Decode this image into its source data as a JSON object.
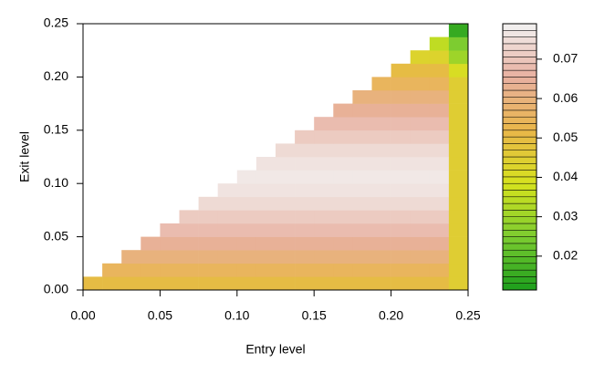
{
  "chart_data": {
    "type": "heatmap",
    "xlabel": "Entry level",
    "ylabel": "Exit level",
    "x_bins": [
      0,
      0.0125,
      0.025,
      0.0375,
      0.05,
      0.0625,
      0.075,
      0.0875,
      0.1,
      0.1125,
      0.125,
      0.1375,
      0.15,
      0.1625,
      0.175,
      0.1875,
      0.2,
      0.2125,
      0.225,
      0.2375,
      0.25
    ],
    "y_bins": [
      0,
      0.0125,
      0.025,
      0.0375,
      0.05,
      0.0625,
      0.075,
      0.0875,
      0.1,
      0.1125,
      0.125,
      0.1375,
      0.15,
      0.1625,
      0.175,
      0.1875,
      0.2,
      0.2125,
      0.225,
      0.2375,
      0.25
    ],
    "z": [
      [
        0.05,
        0.05,
        0.05,
        0.05,
        0.05,
        0.05,
        0.05,
        0.05,
        0.05,
        0.05,
        0.05,
        0.05,
        0.05,
        0.05,
        0.05,
        0.05,
        0.05,
        0.05,
        0.05,
        0.045
      ],
      [
        null,
        0.055,
        0.055,
        0.055,
        0.055,
        0.055,
        0.055,
        0.055,
        0.055,
        0.055,
        0.055,
        0.055,
        0.055,
        0.055,
        0.055,
        0.055,
        0.055,
        0.055,
        0.055,
        0.045
      ],
      [
        null,
        null,
        0.06,
        0.06,
        0.06,
        0.06,
        0.06,
        0.06,
        0.06,
        0.06,
        0.06,
        0.06,
        0.06,
        0.06,
        0.06,
        0.06,
        0.06,
        0.06,
        0.06,
        0.045
      ],
      [
        null,
        null,
        null,
        0.064,
        0.064,
        0.064,
        0.064,
        0.064,
        0.064,
        0.064,
        0.064,
        0.064,
        0.064,
        0.064,
        0.064,
        0.064,
        0.064,
        0.064,
        0.064,
        0.045
      ],
      [
        null,
        null,
        null,
        null,
        0.068,
        0.068,
        0.068,
        0.068,
        0.068,
        0.068,
        0.068,
        0.068,
        0.068,
        0.068,
        0.068,
        0.068,
        0.068,
        0.068,
        0.068,
        0.045
      ],
      [
        null,
        null,
        null,
        null,
        null,
        0.071,
        0.071,
        0.071,
        0.071,
        0.071,
        0.071,
        0.071,
        0.071,
        0.071,
        0.071,
        0.071,
        0.071,
        0.071,
        0.071,
        0.045
      ],
      [
        null,
        null,
        null,
        null,
        null,
        null,
        0.074,
        0.074,
        0.074,
        0.074,
        0.074,
        0.074,
        0.074,
        0.074,
        0.074,
        0.074,
        0.074,
        0.074,
        0.074,
        0.045
      ],
      [
        null,
        null,
        null,
        null,
        null,
        null,
        null,
        0.076,
        0.076,
        0.076,
        0.076,
        0.076,
        0.076,
        0.076,
        0.076,
        0.076,
        0.076,
        0.076,
        0.076,
        0.045
      ],
      [
        null,
        null,
        null,
        null,
        null,
        null,
        null,
        null,
        0.077,
        0.077,
        0.077,
        0.077,
        0.077,
        0.077,
        0.077,
        0.077,
        0.077,
        0.077,
        0.077,
        0.045
      ],
      [
        null,
        null,
        null,
        null,
        null,
        null,
        null,
        null,
        null,
        0.076,
        0.076,
        0.076,
        0.076,
        0.076,
        0.076,
        0.076,
        0.076,
        0.076,
        0.076,
        0.045
      ],
      [
        null,
        null,
        null,
        null,
        null,
        null,
        null,
        null,
        null,
        null,
        0.074,
        0.074,
        0.074,
        0.074,
        0.074,
        0.074,
        0.074,
        0.074,
        0.074,
        0.045
      ],
      [
        null,
        null,
        null,
        null,
        null,
        null,
        null,
        null,
        null,
        null,
        null,
        0.071,
        0.071,
        0.071,
        0.071,
        0.071,
        0.071,
        0.071,
        0.071,
        0.045
      ],
      [
        null,
        null,
        null,
        null,
        null,
        null,
        null,
        null,
        null,
        null,
        null,
        null,
        0.068,
        0.068,
        0.068,
        0.068,
        0.068,
        0.068,
        0.068,
        0.045
      ],
      [
        null,
        null,
        null,
        null,
        null,
        null,
        null,
        null,
        null,
        null,
        null,
        null,
        null,
        0.064,
        0.064,
        0.064,
        0.064,
        0.064,
        0.064,
        0.045
      ],
      [
        null,
        null,
        null,
        null,
        null,
        null,
        null,
        null,
        null,
        null,
        null,
        null,
        null,
        null,
        0.06,
        0.06,
        0.06,
        0.06,
        0.06,
        0.045
      ],
      [
        null,
        null,
        null,
        null,
        null,
        null,
        null,
        null,
        null,
        null,
        null,
        null,
        null,
        null,
        null,
        0.055,
        0.055,
        0.055,
        0.055,
        0.045
      ],
      [
        null,
        null,
        null,
        null,
        null,
        null,
        null,
        null,
        null,
        null,
        null,
        null,
        null,
        null,
        null,
        null,
        0.05,
        0.05,
        0.05,
        0.04
      ],
      [
        null,
        null,
        null,
        null,
        null,
        null,
        null,
        null,
        null,
        null,
        null,
        null,
        null,
        null,
        null,
        null,
        null,
        0.043,
        0.043,
        0.03
      ],
      [
        null,
        null,
        null,
        null,
        null,
        null,
        null,
        null,
        null,
        null,
        null,
        null,
        null,
        null,
        null,
        null,
        null,
        null,
        0.035,
        0.025
      ],
      [
        null,
        null,
        null,
        null,
        null,
        null,
        null,
        null,
        null,
        null,
        null,
        null,
        null,
        null,
        null,
        null,
        null,
        null,
        null,
        0.015
      ]
    ],
    "xlim": [
      0,
      0.25
    ],
    "xticks": [
      {
        "value": 0,
        "label": "0.00"
      },
      0.05,
      {
        "value": 0.1,
        "label": "0.10"
      },
      0.15,
      {
        "value": 0.2,
        "label": "0.20"
      },
      0.25
    ],
    "ylim": [
      0,
      0.25
    ],
    "yticks": [
      {
        "value": 0,
        "label": "0.00"
      },
      0.05,
      {
        "value": 0.1,
        "label": "0.10"
      },
      0.15,
      {
        "value": 0.2,
        "label": "0.20"
      },
      0.25
    ],
    "zlim": [
      0.0114,
      0.079
    ],
    "zticks": [
      0.02,
      0.03,
      0.04,
      0.05,
      0.06,
      0.07
    ],
    "colorscale": [
      "#1c9e1c",
      "#7ccc30",
      "#d6e21e",
      "#e9b64a",
      "#e8b0a0",
      "#f2f2f2"
    ]
  }
}
